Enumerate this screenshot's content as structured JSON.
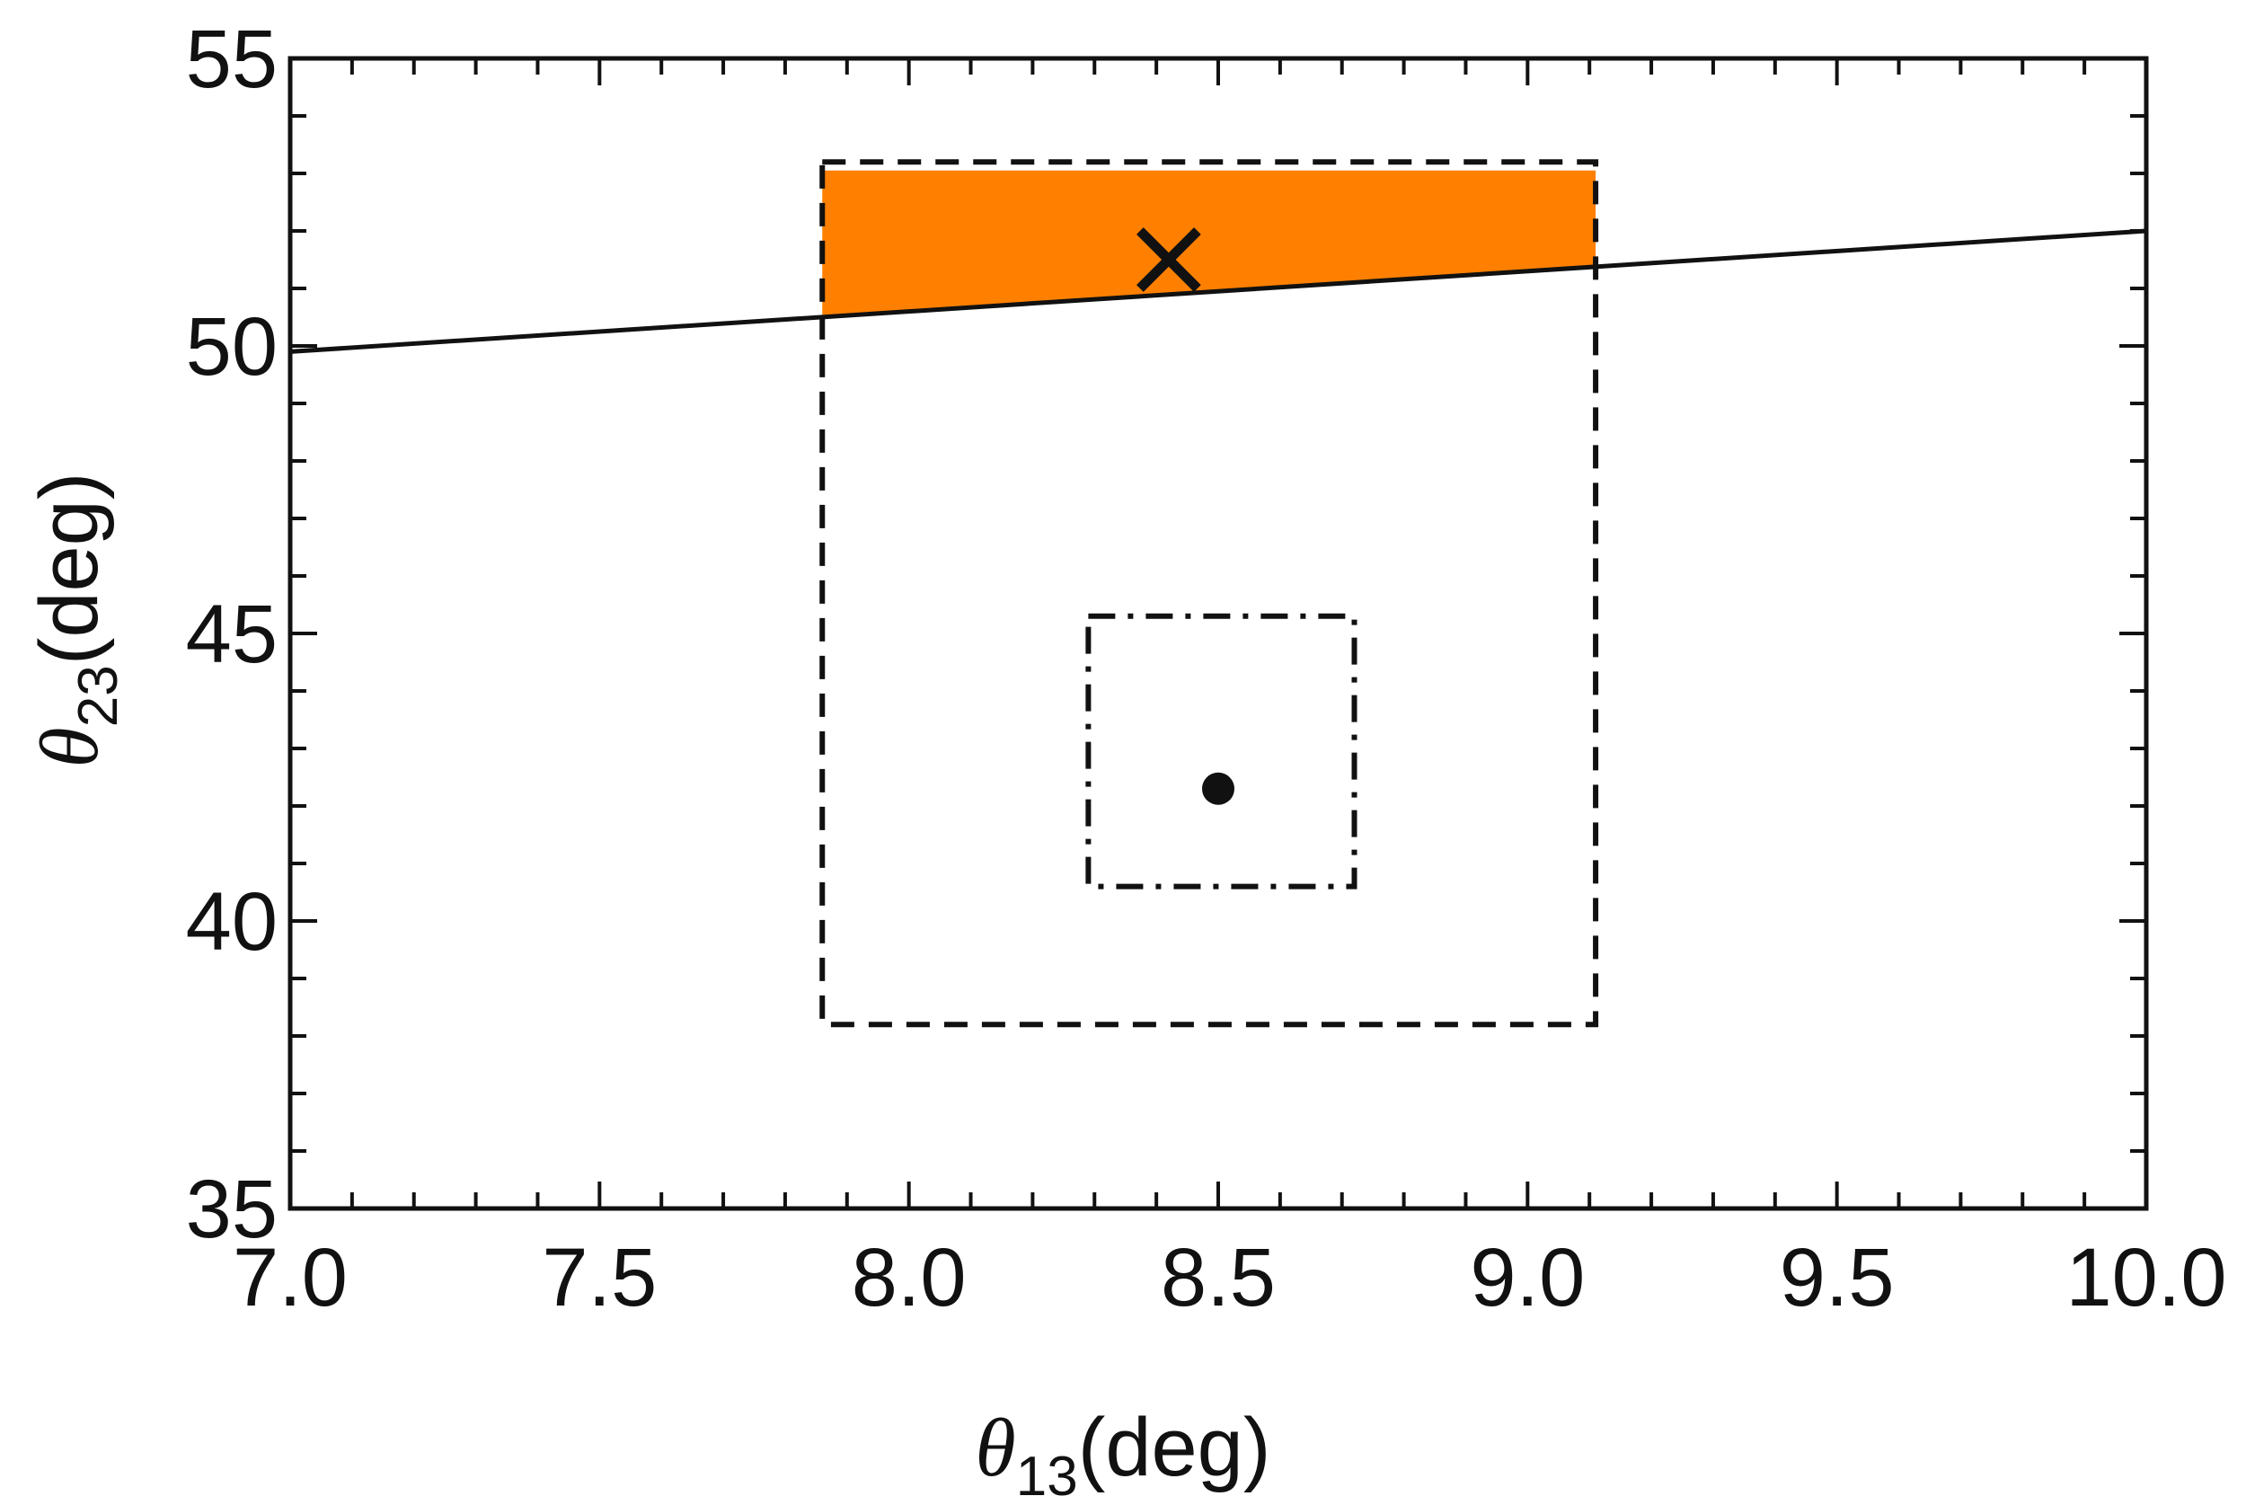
{
  "chart_data": {
    "type": "scatter",
    "title": "",
    "xlabel": {
      "symbol": "θ",
      "subscript": "13",
      "unit": "(deg)"
    },
    "ylabel": {
      "symbol": "θ",
      "subscript": "23",
      "unit": "(deg)"
    },
    "xlim": [
      7.0,
      10.0
    ],
    "ylim": [
      35,
      55
    ],
    "x_ticks": [
      "7.0",
      "7.5",
      "8.0",
      "8.5",
      "9.0",
      "9.5",
      "10.0"
    ],
    "y_ticks": [
      "35",
      "40",
      "45",
      "50",
      "55"
    ],
    "x_tick_values": [
      7.0,
      7.5,
      8.0,
      8.5,
      9.0,
      9.5,
      10.0
    ],
    "y_tick_values": [
      35,
      40,
      45,
      50,
      55
    ],
    "grid": false,
    "series": [
      {
        "kind": "line",
        "style": "solid",
        "color": "#111111",
        "x": [
          7.0,
          10.0
        ],
        "y": [
          49.9,
          52.0
        ]
      },
      {
        "kind": "region",
        "color": "#ff8000",
        "x_range": [
          7.86,
          9.11
        ],
        "y_top": 53.05,
        "bounded_below_by": "line"
      },
      {
        "kind": "rectangle",
        "style": "dashed",
        "color": "#111111",
        "x_range": [
          7.86,
          9.11
        ],
        "y_range": [
          38.2,
          53.2
        ]
      },
      {
        "kind": "rectangle",
        "style": "dash-dot",
        "color": "#111111",
        "x_range": [
          8.29,
          8.72
        ],
        "y_range": [
          40.6,
          45.3
        ]
      },
      {
        "kind": "point",
        "marker": "dot",
        "color": "#111111",
        "x": 8.5,
        "y": 42.3
      },
      {
        "kind": "point",
        "marker": "x",
        "color": "#111111",
        "x": 8.42,
        "y": 51.5
      }
    ]
  }
}
